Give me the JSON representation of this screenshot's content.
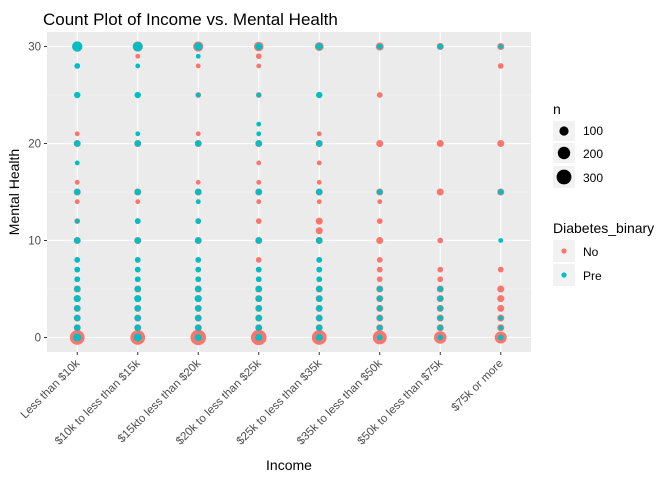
{
  "chart_data": {
    "type": "scatter",
    "title": "Count Plot of Income vs. Mental Health",
    "xlabel": "Income",
    "ylabel": "Mental Health",
    "categories": [
      "Less than $10k",
      "$10k to less than $15k",
      "$15kto less than $20k",
      "$20k to less than $25k",
      "$25k to less than $35k",
      "$35k to less than $50k",
      "$50k to less than $75k",
      "$75k or more"
    ],
    "yticks": [
      0,
      10,
      20,
      30
    ],
    "ylim": [
      -1.5,
      31.5
    ],
    "grid": true,
    "legend_position": "right",
    "size_legend": {
      "title": "n",
      "breaks": [
        100,
        200,
        300
      ]
    },
    "color_legend": {
      "title": "Diabetes_binary",
      "entries": [
        {
          "label": "No",
          "color": "#F8766D"
        },
        {
          "label": "Pre",
          "color": "#00BFC4"
        }
      ]
    },
    "series": [
      {
        "name": "No",
        "color": "#F8766D",
        "points": [
          [
            0,
            0,
            300
          ],
          [
            0,
            1,
            40
          ],
          [
            0,
            2,
            40
          ],
          [
            0,
            3,
            40
          ],
          [
            0,
            4,
            40
          ],
          [
            0,
            5,
            40
          ],
          [
            0,
            6,
            20
          ],
          [
            0,
            7,
            20
          ],
          [
            0,
            8,
            20
          ],
          [
            0,
            10,
            40
          ],
          [
            0,
            12,
            20
          ],
          [
            0,
            14,
            10
          ],
          [
            0,
            15,
            40
          ],
          [
            0,
            16,
            10
          ],
          [
            0,
            20,
            40
          ],
          [
            0,
            21,
            10
          ],
          [
            0,
            25,
            20
          ],
          [
            0,
            30,
            120
          ],
          [
            1,
            0,
            300
          ],
          [
            1,
            1,
            40
          ],
          [
            1,
            2,
            40
          ],
          [
            1,
            3,
            40
          ],
          [
            1,
            4,
            40
          ],
          [
            1,
            5,
            40
          ],
          [
            1,
            6,
            20
          ],
          [
            1,
            7,
            20
          ],
          [
            1,
            8,
            20
          ],
          [
            1,
            10,
            40
          ],
          [
            1,
            12,
            20
          ],
          [
            1,
            14,
            10
          ],
          [
            1,
            15,
            40
          ],
          [
            1,
            20,
            40
          ],
          [
            1,
            25,
            20
          ],
          [
            1,
            29,
            10
          ],
          [
            1,
            30,
            120
          ],
          [
            2,
            0,
            340
          ],
          [
            2,
            1,
            40
          ],
          [
            2,
            2,
            40
          ],
          [
            2,
            3,
            40
          ],
          [
            2,
            4,
            40
          ],
          [
            2,
            5,
            40
          ],
          [
            2,
            6,
            20
          ],
          [
            2,
            7,
            20
          ],
          [
            2,
            8,
            20
          ],
          [
            2,
            10,
            40
          ],
          [
            2,
            12,
            20
          ],
          [
            2,
            14,
            10
          ],
          [
            2,
            15,
            40
          ],
          [
            2,
            16,
            10
          ],
          [
            2,
            20,
            40
          ],
          [
            2,
            21,
            10
          ],
          [
            2,
            25,
            20
          ],
          [
            2,
            28,
            10
          ],
          [
            2,
            30,
            120
          ],
          [
            3,
            0,
            340
          ],
          [
            3,
            1,
            40
          ],
          [
            3,
            2,
            40
          ],
          [
            3,
            3,
            40
          ],
          [
            3,
            4,
            40
          ],
          [
            3,
            5,
            40
          ],
          [
            3,
            6,
            20
          ],
          [
            3,
            7,
            20
          ],
          [
            3,
            8,
            20
          ],
          [
            3,
            10,
            40
          ],
          [
            3,
            12,
            20
          ],
          [
            3,
            14,
            10
          ],
          [
            3,
            15,
            40
          ],
          [
            3,
            16,
            10
          ],
          [
            3,
            18,
            10
          ],
          [
            3,
            20,
            40
          ],
          [
            3,
            25,
            20
          ],
          [
            3,
            28,
            10
          ],
          [
            3,
            29,
            20
          ],
          [
            3,
            30,
            100
          ],
          [
            4,
            0,
            300
          ],
          [
            4,
            1,
            40
          ],
          [
            4,
            2,
            40
          ],
          [
            4,
            3,
            40
          ],
          [
            4,
            4,
            40
          ],
          [
            4,
            5,
            40
          ],
          [
            4,
            6,
            20
          ],
          [
            4,
            7,
            20
          ],
          [
            4,
            8,
            20
          ],
          [
            4,
            10,
            40
          ],
          [
            4,
            11,
            40
          ],
          [
            4,
            12,
            40
          ],
          [
            4,
            14,
            10
          ],
          [
            4,
            15,
            40
          ],
          [
            4,
            16,
            10
          ],
          [
            4,
            18,
            10
          ],
          [
            4,
            20,
            40
          ],
          [
            4,
            21,
            10
          ],
          [
            4,
            25,
            20
          ],
          [
            4,
            30,
            80
          ],
          [
            5,
            0,
            260
          ],
          [
            5,
            1,
            40
          ],
          [
            5,
            2,
            40
          ],
          [
            5,
            3,
            40
          ],
          [
            5,
            4,
            40
          ],
          [
            5,
            5,
            40
          ],
          [
            5,
            6,
            20
          ],
          [
            5,
            7,
            20
          ],
          [
            5,
            8,
            20
          ],
          [
            5,
            10,
            40
          ],
          [
            5,
            12,
            20
          ],
          [
            5,
            14,
            10
          ],
          [
            5,
            15,
            40
          ],
          [
            5,
            20,
            40
          ],
          [
            5,
            25,
            20
          ],
          [
            5,
            30,
            60
          ],
          [
            6,
            0,
            200
          ],
          [
            6,
            1,
            40
          ],
          [
            6,
            2,
            40
          ],
          [
            6,
            3,
            40
          ],
          [
            6,
            4,
            40
          ],
          [
            6,
            5,
            40
          ],
          [
            6,
            6,
            20
          ],
          [
            6,
            7,
            20
          ],
          [
            6,
            10,
            20
          ],
          [
            6,
            15,
            40
          ],
          [
            6,
            20,
            40
          ],
          [
            6,
            30,
            40
          ],
          [
            7,
            0,
            180
          ],
          [
            7,
            1,
            40
          ],
          [
            7,
            2,
            40
          ],
          [
            7,
            3,
            40
          ],
          [
            7,
            4,
            40
          ],
          [
            7,
            5,
            40
          ],
          [
            7,
            7,
            20
          ],
          [
            7,
            15,
            40
          ],
          [
            7,
            20,
            40
          ],
          [
            7,
            28,
            20
          ],
          [
            7,
            30,
            40
          ]
        ]
      },
      {
        "name": "Pre",
        "color": "#00BFC4",
        "points": [
          [
            0,
            0,
            60
          ],
          [
            0,
            1,
            30
          ],
          [
            0,
            2,
            30
          ],
          [
            0,
            3,
            30
          ],
          [
            0,
            4,
            40
          ],
          [
            0,
            5,
            30
          ],
          [
            0,
            6,
            20
          ],
          [
            0,
            7,
            20
          ],
          [
            0,
            8,
            20
          ],
          [
            0,
            10,
            30
          ],
          [
            0,
            12,
            10
          ],
          [
            0,
            15,
            30
          ],
          [
            0,
            18,
            10
          ],
          [
            0,
            20,
            30
          ],
          [
            0,
            25,
            30
          ],
          [
            0,
            28,
            20
          ],
          [
            0,
            30,
            120
          ],
          [
            1,
            0,
            60
          ],
          [
            1,
            1,
            30
          ],
          [
            1,
            2,
            30
          ],
          [
            1,
            3,
            30
          ],
          [
            1,
            4,
            40
          ],
          [
            1,
            5,
            30
          ],
          [
            1,
            6,
            20
          ],
          [
            1,
            7,
            20
          ],
          [
            1,
            8,
            20
          ],
          [
            1,
            10,
            30
          ],
          [
            1,
            12,
            20
          ],
          [
            1,
            15,
            30
          ],
          [
            1,
            20,
            30
          ],
          [
            1,
            21,
            10
          ],
          [
            1,
            25,
            30
          ],
          [
            1,
            28,
            10
          ],
          [
            1,
            30,
            100
          ],
          [
            2,
            0,
            40
          ],
          [
            2,
            1,
            30
          ],
          [
            2,
            2,
            30
          ],
          [
            2,
            3,
            30
          ],
          [
            2,
            4,
            40
          ],
          [
            2,
            5,
            30
          ],
          [
            2,
            6,
            20
          ],
          [
            2,
            7,
            20
          ],
          [
            2,
            8,
            20
          ],
          [
            2,
            10,
            30
          ],
          [
            2,
            12,
            20
          ],
          [
            2,
            14,
            10
          ],
          [
            2,
            15,
            30
          ],
          [
            2,
            20,
            30
          ],
          [
            2,
            25,
            10
          ],
          [
            2,
            29,
            10
          ],
          [
            2,
            30,
            60
          ],
          [
            3,
            0,
            40
          ],
          [
            3,
            1,
            30
          ],
          [
            3,
            2,
            30
          ],
          [
            3,
            3,
            30
          ],
          [
            3,
            4,
            30
          ],
          [
            3,
            5,
            30
          ],
          [
            3,
            6,
            20
          ],
          [
            3,
            7,
            20
          ],
          [
            3,
            10,
            30
          ],
          [
            3,
            15,
            30
          ],
          [
            3,
            20,
            30
          ],
          [
            3,
            21,
            10
          ],
          [
            3,
            22,
            10
          ],
          [
            3,
            25,
            10
          ],
          [
            3,
            30,
            40
          ],
          [
            4,
            0,
            40
          ],
          [
            4,
            1,
            30
          ],
          [
            4,
            2,
            30
          ],
          [
            4,
            3,
            30
          ],
          [
            4,
            4,
            30
          ],
          [
            4,
            5,
            30
          ],
          [
            4,
            6,
            20
          ],
          [
            4,
            7,
            20
          ],
          [
            4,
            8,
            20
          ],
          [
            4,
            10,
            30
          ],
          [
            4,
            15,
            30
          ],
          [
            4,
            20,
            30
          ],
          [
            4,
            25,
            30
          ],
          [
            4,
            30,
            40
          ],
          [
            5,
            0,
            20
          ],
          [
            5,
            1,
            20
          ],
          [
            5,
            2,
            20
          ],
          [
            5,
            3,
            20
          ],
          [
            5,
            4,
            20
          ],
          [
            5,
            5,
            20
          ],
          [
            5,
            15,
            20
          ],
          [
            5,
            30,
            20
          ],
          [
            6,
            0,
            20
          ],
          [
            6,
            1,
            20
          ],
          [
            6,
            2,
            20
          ],
          [
            6,
            3,
            20
          ],
          [
            6,
            4,
            20
          ],
          [
            6,
            5,
            20
          ],
          [
            6,
            30,
            20
          ],
          [
            7,
            0,
            20
          ],
          [
            7,
            1,
            10
          ],
          [
            7,
            2,
            10
          ],
          [
            7,
            10,
            10
          ],
          [
            7,
            15,
            20
          ],
          [
            7,
            30,
            10
          ]
        ]
      }
    ]
  }
}
